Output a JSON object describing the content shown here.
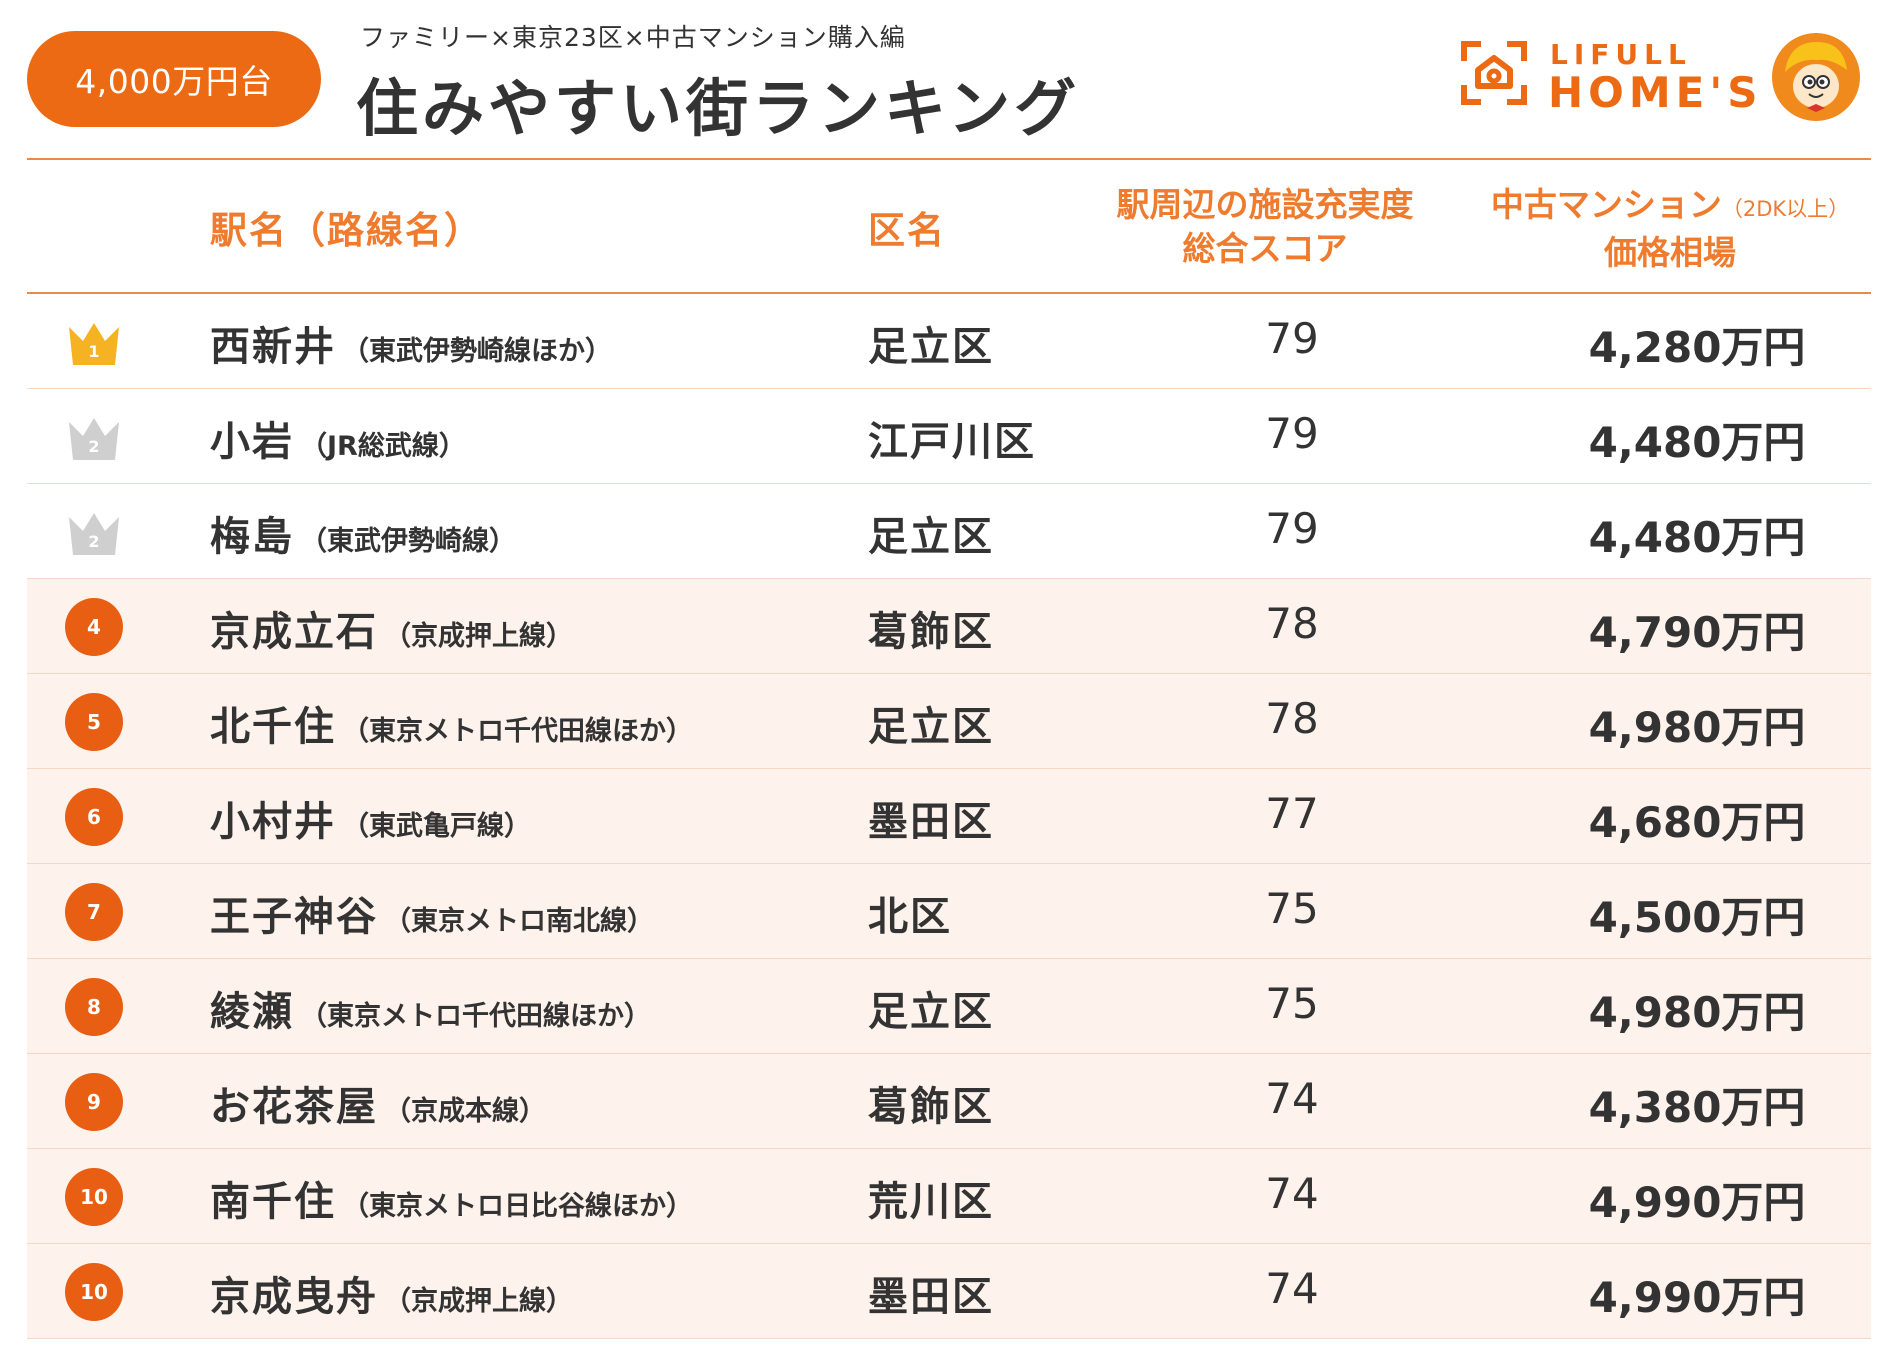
{
  "header": {
    "price_band": "4,000万円台",
    "subtitle": "ファミリー×東京23区×中古マンション購入編",
    "title": "住みやすい街ランキング",
    "brand_top": "LIFULL",
    "brand_bottom": "HOME'S"
  },
  "columns": {
    "station": "駅名（路線名）",
    "ward": "区名",
    "score_line1": "駅周辺の施設充実度",
    "score_line2": "総合スコア",
    "price_line1": "中古マンション",
    "price_note": "（2DK以上）",
    "price_line2": "価格相場"
  },
  "colors": {
    "accent": "#ec6a14",
    "header_text": "#ef7c2e",
    "row_tint": "#fdf2ec",
    "gold_crown": "#f5b323",
    "silver_crown": "#cfcfcf"
  },
  "rows": [
    {
      "rank": "1",
      "badge": "gold-crown",
      "station": "西新井",
      "line": "（東武伊勢崎線ほか）",
      "ward": "足立区",
      "score": "79",
      "price": "4,280万円"
    },
    {
      "rank": "2",
      "badge": "silver-crown",
      "station": "小岩",
      "line": "（JR総武線）",
      "ward": "江戸川区",
      "score": "79",
      "price": "4,480万円"
    },
    {
      "rank": "2",
      "badge": "silver-crown",
      "station": "梅島",
      "line": "（東武伊勢崎線）",
      "ward": "足立区",
      "score": "79",
      "price": "4,480万円"
    },
    {
      "rank": "4",
      "badge": "circle",
      "station": "京成立石",
      "line": "（京成押上線）",
      "ward": "葛飾区",
      "score": "78",
      "price": "4,790万円"
    },
    {
      "rank": "5",
      "badge": "circle",
      "station": "北千住",
      "line": "（東京メトロ千代田線ほか）",
      "ward": "足立区",
      "score": "78",
      "price": "4,980万円"
    },
    {
      "rank": "6",
      "badge": "circle",
      "station": "小村井",
      "line": "（東武亀戸線）",
      "ward": "墨田区",
      "score": "77",
      "price": "4,680万円"
    },
    {
      "rank": "7",
      "badge": "circle",
      "station": "王子神谷",
      "line": "（東京メトロ南北線）",
      "ward": "北区",
      "score": "75",
      "price": "4,500万円"
    },
    {
      "rank": "8",
      "badge": "circle",
      "station": "綾瀬",
      "line": "（東京メトロ千代田線ほか）",
      "ward": "足立区",
      "score": "75",
      "price": "4,980万円"
    },
    {
      "rank": "9",
      "badge": "circle",
      "station": "お花茶屋",
      "line": "（京成本線）",
      "ward": "葛飾区",
      "score": "74",
      "price": "4,380万円"
    },
    {
      "rank": "10",
      "badge": "circle",
      "station": "南千住",
      "line": "（東京メトロ日比谷線ほか）",
      "ward": "荒川区",
      "score": "74",
      "price": "4,990万円"
    },
    {
      "rank": "10",
      "badge": "circle",
      "station": "京成曳舟",
      "line": "（京成押上線）",
      "ward": "墨田区",
      "score": "74",
      "price": "4,990万円"
    }
  ]
}
